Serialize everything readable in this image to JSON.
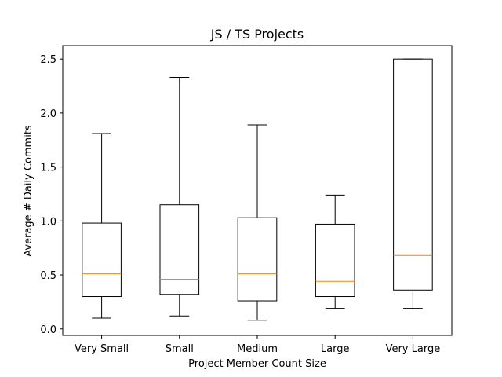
{
  "chart_data": {
    "type": "boxplot",
    "title": "JS / TS Projects",
    "xlabel": "Project Member Count Size",
    "ylabel": "Average # Daily Commits",
    "ylim": [
      -0.06,
      2.625
    ],
    "yticks": [
      0.0,
      0.5,
      1.0,
      1.5,
      2.0,
      2.5
    ],
    "grid": false,
    "colors": {
      "box": "#000000",
      "median": "#ff7f0e"
    },
    "categories": [
      "Very Small",
      "Small",
      "Medium",
      "Large",
      "Very Large"
    ],
    "boxes": [
      {
        "category": "Very Small",
        "whisker_low": 0.1,
        "q1": 0.3,
        "median": 0.51,
        "q3": 0.98,
        "whisker_high": 1.81
      },
      {
        "category": "Small",
        "whisker_low": 0.12,
        "q1": 0.32,
        "median": 0.46,
        "q3": 1.15,
        "whisker_high": 2.33
      },
      {
        "category": "Medium",
        "whisker_low": 0.08,
        "q1": 0.26,
        "median": 0.51,
        "q3": 1.03,
        "whisker_high": 1.89
      },
      {
        "category": "Large",
        "whisker_low": 0.19,
        "q1": 0.3,
        "median": 0.44,
        "q3": 0.97,
        "whisker_high": 1.24
      },
      {
        "category": "Very Large",
        "whisker_low": 0.19,
        "q1": 0.36,
        "median": 0.68,
        "q3": 2.5,
        "whisker_high": 2.5
      }
    ]
  }
}
